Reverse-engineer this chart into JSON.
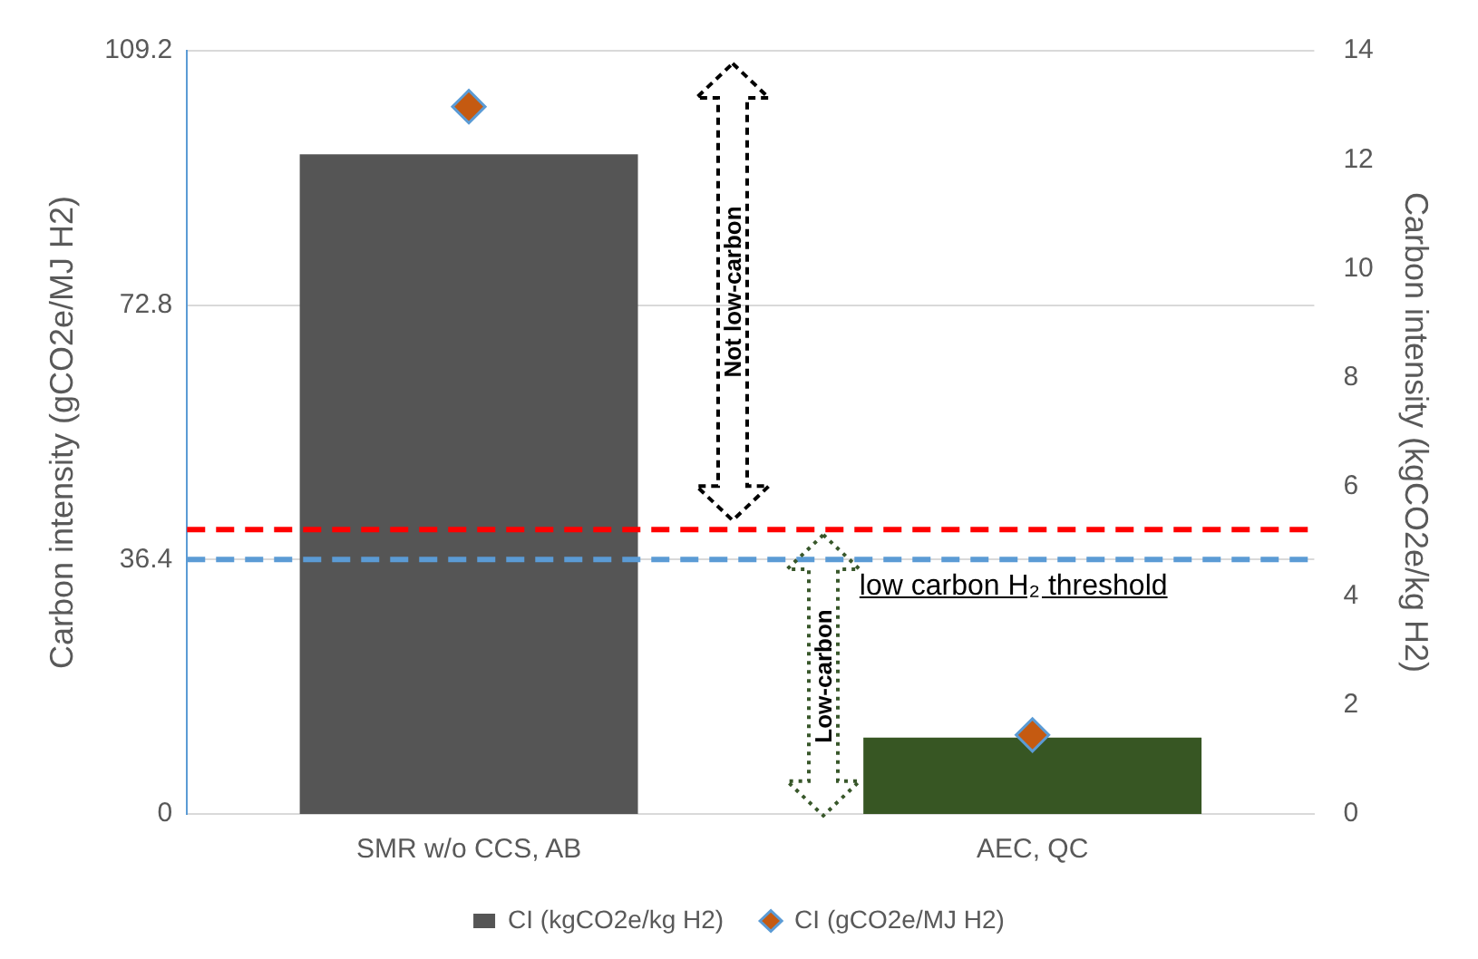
{
  "chart_data": {
    "type": "bar",
    "ylabel": "Carbon intensity (gCO2e/MJ H2)",
    "y2label": "Carbon intensity (kgCO2e/kg H2)",
    "categories": [
      "SMR w/o CCS, AB",
      "AEC, QC"
    ],
    "series": [
      {
        "name": "CI (kgCO2e/kg H2)",
        "colors": [
          "#555555",
          "#375623"
        ],
        "color": "#555555",
        "values": [
          12.1,
          1.4
        ],
        "axis": "y2"
      },
      {
        "type": "scatter",
        "name": "CI (gCO2e/MJ H2)",
        "color": "#c55a11",
        "x": [
          "SMR w/o CCS, AB",
          "AEC, QC"
        ],
        "values": [
          101.2,
          11.3
        ],
        "axis": "y",
        "marker": "diamond"
      }
    ],
    "ylim": [
      0,
      109.2
    ],
    "yticks": [
      0,
      36.4,
      72.8,
      109.2
    ],
    "y2lim": [
      0,
      14
    ],
    "y2ticks": [
      0,
      2,
      4,
      6,
      8,
      10,
      12,
      14
    ],
    "ref_lines": [
      {
        "axis": "y",
        "value": 40.7,
        "color": "#ff0000",
        "line_style": "dashed"
      },
      {
        "axis": "y",
        "value": 36.4,
        "label": "low carbon H₂ threshold",
        "color": "#5b9bd5",
        "line_style": "dashed"
      }
    ],
    "annotations": [
      "Not low-carbon",
      "Low-carbon"
    ],
    "grid": "y",
    "legend": "bottom"
  }
}
